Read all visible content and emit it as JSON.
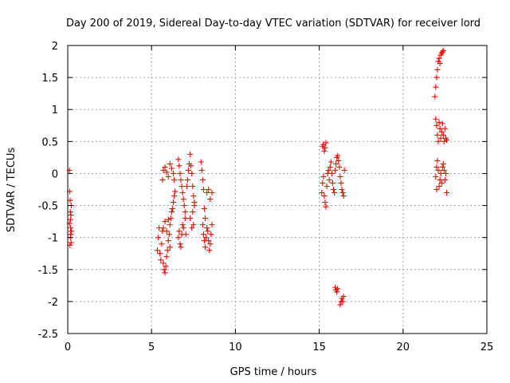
{
  "chart_data": {
    "type": "scatter",
    "title": "Day 200 of 2019, Sidereal Day-to-day VTEC variation (SDTVAR) for receiver lord",
    "xlabel": "GPS time / hours",
    "ylabel": "SDTVAR / TECUs",
    "xlim": [
      0,
      25
    ],
    "ylim": [
      -2.5,
      2
    ],
    "xticks": [
      0,
      5,
      10,
      15,
      20,
      25
    ],
    "xtick_labels": [
      "0",
      "5",
      "10",
      "15",
      "20",
      "25"
    ],
    "yticks": [
      2,
      1.5,
      1,
      0.5,
      0,
      -0.5,
      -1,
      -1.5,
      -2,
      -2.5
    ],
    "ytick_labels": [
      "2",
      "1.5",
      "1",
      "0.5",
      "0",
      "-0.5",
      "-1",
      "-1.5",
      "-2",
      "-2.5"
    ],
    "grid": true,
    "marker": "+",
    "color": "#ff0000",
    "series": [
      {
        "name": "SDTVAR",
        "points": [
          [
            0.1,
            0.05
          ],
          [
            0.12,
            -0.28
          ],
          [
            0.14,
            -0.42
          ],
          [
            0.15,
            -0.6
          ],
          [
            0.16,
            -0.72
          ],
          [
            0.17,
            -0.85
          ],
          [
            0.18,
            -0.95
          ],
          [
            0.2,
            -1.08
          ],
          [
            0.13,
            -1.12
          ],
          [
            0.22,
            -0.9
          ],
          [
            0.19,
            -0.65
          ],
          [
            0.21,
            -0.5
          ],
          [
            0.11,
            -0.78
          ],
          [
            0.16,
            -1.0
          ],
          [
            5.35,
            -1.2
          ],
          [
            5.4,
            -1.0
          ],
          [
            5.45,
            -0.85
          ],
          [
            5.5,
            -1.25
          ],
          [
            5.55,
            -1.35
          ],
          [
            5.6,
            -1.1
          ],
          [
            5.65,
            -0.9
          ],
          [
            5.7,
            -1.4
          ],
          [
            5.75,
            -1.5
          ],
          [
            5.8,
            -1.55
          ],
          [
            5.85,
            -1.45
          ],
          [
            5.9,
            -1.3
          ],
          [
            5.95,
            -1.2
          ],
          [
            6.0,
            -1.05
          ],
          [
            6.05,
            -0.95
          ],
          [
            6.1,
            -0.8
          ],
          [
            6.15,
            -0.7
          ],
          [
            6.2,
            -0.6
          ],
          [
            6.25,
            -0.55
          ],
          [
            6.3,
            -0.45
          ],
          [
            6.35,
            -0.35
          ],
          [
            6.4,
            -0.28
          ],
          [
            5.7,
            -0.85
          ],
          [
            5.8,
            -0.75
          ],
          [
            5.9,
            -0.9
          ],
          [
            6.0,
            -0.72
          ],
          [
            6.1,
            -1.15
          ],
          [
            5.65,
            -0.1
          ],
          [
            5.7,
            0.05
          ],
          [
            5.8,
            0.1
          ],
          [
            5.9,
            0.02
          ],
          [
            6.0,
            -0.05
          ],
          [
            6.1,
            0.15
          ],
          [
            6.2,
            0.08
          ],
          [
            6.3,
            0.0
          ],
          [
            6.35,
            -0.1
          ],
          [
            6.6,
            0.22
          ],
          [
            6.65,
            0.12
          ],
          [
            6.7,
            0.0
          ],
          [
            6.75,
            -0.1
          ],
          [
            6.8,
            -0.2
          ],
          [
            6.85,
            -0.3
          ],
          [
            6.9,
            -0.4
          ],
          [
            6.95,
            -0.5
          ],
          [
            7.0,
            -0.6
          ],
          [
            6.6,
            -1.0
          ],
          [
            6.65,
            -0.9
          ],
          [
            6.7,
            -1.1
          ],
          [
            6.75,
            -1.15
          ],
          [
            6.8,
            -0.95
          ],
          [
            6.85,
            -0.8
          ],
          [
            6.9,
            -0.85
          ],
          [
            7.0,
            -0.7
          ],
          [
            7.05,
            -0.95
          ],
          [
            7.1,
            -0.2
          ],
          [
            7.15,
            -0.1
          ],
          [
            7.2,
            0.05
          ],
          [
            7.25,
            0.15
          ],
          [
            7.3,
            0.3
          ],
          [
            7.35,
            0.12
          ],
          [
            7.4,
            0.0
          ],
          [
            7.45,
            -0.2
          ],
          [
            7.5,
            -0.35
          ],
          [
            7.55,
            -0.5
          ],
          [
            7.3,
            -0.7
          ],
          [
            7.4,
            -0.85
          ],
          [
            7.45,
            -0.6
          ],
          [
            7.5,
            -0.8
          ],
          [
            7.55,
            -0.45
          ],
          [
            7.95,
            0.18
          ],
          [
            8.0,
            0.05
          ],
          [
            8.05,
            -0.1
          ],
          [
            8.1,
            -0.25
          ],
          [
            8.15,
            -0.55
          ],
          [
            8.2,
            -0.7
          ],
          [
            8.05,
            -0.8
          ],
          [
            8.1,
            -0.95
          ],
          [
            8.15,
            -1.05
          ],
          [
            8.2,
            -1.15
          ],
          [
            8.25,
            -1.0
          ],
          [
            8.3,
            -0.85
          ],
          [
            8.35,
            -0.9
          ],
          [
            8.4,
            -1.05
          ],
          [
            8.45,
            -1.2
          ],
          [
            8.5,
            -1.1
          ],
          [
            8.55,
            -0.95
          ],
          [
            8.6,
            -0.8
          ],
          [
            8.3,
            -0.3
          ],
          [
            8.4,
            -0.25
          ],
          [
            8.5,
            -0.4
          ],
          [
            8.6,
            -0.3
          ],
          [
            15.2,
            0.42
          ],
          [
            15.25,
            0.45
          ],
          [
            15.3,
            0.35
          ],
          [
            15.35,
            0.4
          ],
          [
            15.4,
            0.48
          ],
          [
            15.15,
            -0.3
          ],
          [
            15.2,
            -0.15
          ],
          [
            15.25,
            -0.05
          ],
          [
            15.3,
            -0.35
          ],
          [
            15.35,
            -0.45
          ],
          [
            15.4,
            -0.52
          ],
          [
            15.45,
            -0.2
          ],
          [
            15.5,
            0.0
          ],
          [
            15.55,
            0.05
          ],
          [
            15.6,
            -0.1
          ],
          [
            15.65,
            0.1
          ],
          [
            15.7,
            0.18
          ],
          [
            15.75,
            0.0
          ],
          [
            15.8,
            -0.15
          ],
          [
            15.85,
            -0.25
          ],
          [
            15.9,
            -0.3
          ],
          [
            15.95,
            0.05
          ],
          [
            16.0,
            0.15
          ],
          [
            16.05,
            0.25
          ],
          [
            16.1,
            0.28
          ],
          [
            16.15,
            0.2
          ],
          [
            16.2,
            0.1
          ],
          [
            16.25,
            -0.05
          ],
          [
            16.3,
            -0.15
          ],
          [
            16.35,
            -0.25
          ],
          [
            16.4,
            -0.3
          ],
          [
            16.45,
            -0.35
          ],
          [
            16.5,
            0.05
          ],
          [
            15.95,
            -1.78
          ],
          [
            16.0,
            -1.82
          ],
          [
            16.05,
            -1.85
          ],
          [
            16.1,
            -1.8
          ],
          [
            16.25,
            -2.05
          ],
          [
            16.3,
            -2.0
          ],
          [
            16.35,
            -1.95
          ],
          [
            16.4,
            -2.0
          ],
          [
            16.45,
            -1.92
          ],
          [
            21.9,
            1.2
          ],
          [
            21.95,
            1.35
          ],
          [
            22.0,
            1.5
          ],
          [
            22.05,
            1.62
          ],
          [
            22.1,
            1.75
          ],
          [
            22.15,
            1.8
          ],
          [
            22.2,
            1.72
          ],
          [
            22.25,
            1.85
          ],
          [
            22.3,
            1.88
          ],
          [
            22.35,
            1.9
          ],
          [
            22.4,
            1.92
          ],
          [
            21.95,
            0.85
          ],
          [
            22.0,
            0.75
          ],
          [
            22.05,
            0.6
          ],
          [
            22.1,
            0.5
          ],
          [
            22.15,
            0.8
          ],
          [
            22.2,
            0.7
          ],
          [
            22.25,
            0.55
          ],
          [
            22.3,
            0.65
          ],
          [
            22.35,
            0.78
          ],
          [
            22.4,
            0.6
          ],
          [
            22.45,
            0.5
          ],
          [
            22.5,
            0.7
          ],
          [
            22.55,
            0.55
          ],
          [
            22.6,
            0.52
          ],
          [
            21.95,
            -0.05
          ],
          [
            22.0,
            0.1
          ],
          [
            22.05,
            0.2
          ],
          [
            22.1,
            0.05
          ],
          [
            22.15,
            -0.2
          ],
          [
            22.2,
            -0.1
          ],
          [
            22.25,
            0.0
          ],
          [
            22.3,
            -0.15
          ],
          [
            22.35,
            0.1
          ],
          [
            22.4,
            0.15
          ],
          [
            22.45,
            0.05
          ],
          [
            22.5,
            -0.1
          ],
          [
            22.55,
            0.0
          ],
          [
            22.6,
            -0.3
          ],
          [
            22.0,
            -0.25
          ]
        ]
      }
    ]
  }
}
